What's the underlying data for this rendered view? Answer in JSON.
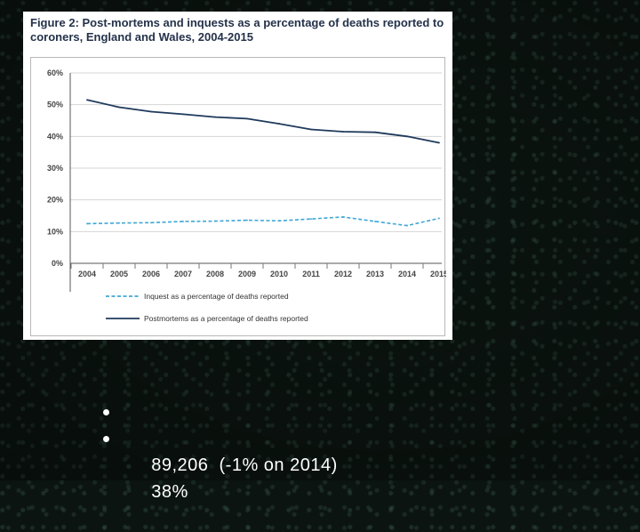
{
  "figure": {
    "title": "Figure 2: Post-mortems and inquests as a percentage of deaths reported to coroners, England and Wales, 2004-2015"
  },
  "chart_data": {
    "type": "line",
    "title": "Figure 2: Post-mortems and inquests as a percentage of deaths reported to coroners, England and Wales, 2004-2015",
    "xlabel": "",
    "ylabel": "",
    "x": [
      "2004",
      "2005",
      "2006",
      "2007",
      "2008",
      "2009",
      "2010",
      "2011",
      "2012",
      "2013",
      "2014",
      "2015"
    ],
    "y_ticks": [
      "0%",
      "10%",
      "20%",
      "30%",
      "40%",
      "50%",
      "60%"
    ],
    "ylim": [
      0,
      60
    ],
    "grid": true,
    "legend_position": "bottom",
    "series": [
      {
        "name": "Inquest as a percentage of deaths reported",
        "style": "dashed",
        "color": "#3fa7d6",
        "values": [
          12.5,
          12.7,
          12.8,
          13.2,
          13.3,
          13.6,
          13.4,
          14.0,
          14.6,
          13.2,
          11.9,
          14.2
        ]
      },
      {
        "name": "Postmortems as a percentage of deaths reported",
        "style": "solid",
        "color": "#1f3a5c",
        "values": [
          51.5,
          49.2,
          47.8,
          47.0,
          46.1,
          45.6,
          44.0,
          42.2,
          41.5,
          41.3,
          40.0,
          38.0
        ]
      }
    ]
  },
  "bullets": [
    {
      "text": "89,206  (-1% on 2014)"
    },
    {
      "text": "38%"
    }
  ]
}
